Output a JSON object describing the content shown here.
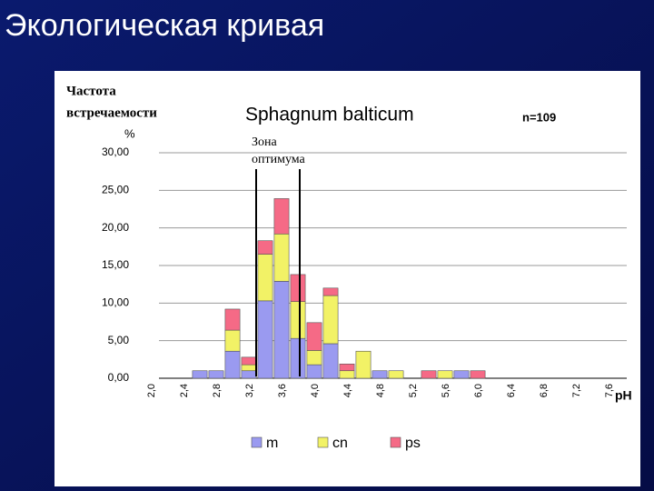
{
  "slide_title": "Экологическая кривая",
  "chart_data": {
    "type": "stacked_bar",
    "title": "Sphagnum balticum",
    "subtitle": "n=109",
    "ylabel": [
      "Частота",
      "встречаемости",
      "%"
    ],
    "xlabel": "pH",
    "annotation": [
      "Зона",
      "оптимума"
    ],
    "categories": [
      "2,0",
      null,
      "2,4",
      null,
      "2,8",
      null,
      "3,2",
      null,
      "3,6",
      null,
      "4,0",
      null,
      "4,4",
      null,
      "4,8",
      null,
      "5,2",
      null,
      "5,6",
      null,
      "6,0",
      null,
      "6,4",
      null,
      "6,8",
      null,
      "7,2",
      null,
      "7,6"
    ],
    "series": [
      {
        "name": "m",
        "color": "#9a9af0",
        "values": [
          0,
          0,
          1,
          1,
          3.6,
          1,
          10.3,
          12.9,
          5.3,
          1.8,
          4.6,
          0,
          0,
          1,
          0,
          0,
          0,
          0,
          1,
          0,
          0,
          0,
          0,
          0,
          0,
          0,
          0,
          0,
          0
        ]
      },
      {
        "name": "cn",
        "color": "#f2f266",
        "values": [
          0,
          0,
          0,
          0,
          2.8,
          0.8,
          6.2,
          6.3,
          4.9,
          1.9,
          6.4,
          1,
          3.6,
          0,
          1,
          0,
          0,
          1,
          0,
          0,
          0,
          0,
          0,
          0,
          0,
          0,
          0,
          0,
          0
        ]
      },
      {
        "name": "ps",
        "color": "#f56a86",
        "values": [
          0,
          0,
          0,
          0,
          2.8,
          1,
          1.8,
          4.7,
          3.6,
          3.7,
          1,
          0.9,
          0,
          0,
          0,
          0,
          1,
          0,
          0,
          1,
          0,
          0,
          0,
          0,
          0,
          0,
          0,
          0,
          0
        ]
      }
    ],
    "ylim": [
      0,
      30
    ],
    "yticks": [
      {
        "value": 0,
        "label": "0,00"
      },
      {
        "value": 5,
        "label": "5,00"
      },
      {
        "value": 10,
        "label": "10,00"
      },
      {
        "value": 15,
        "label": "15,00"
      },
      {
        "value": 20,
        "label": "20,00"
      },
      {
        "value": 25,
        "label": "25,00"
      },
      {
        "value": 30,
        "label": "30,00"
      }
    ],
    "grid": true
  }
}
